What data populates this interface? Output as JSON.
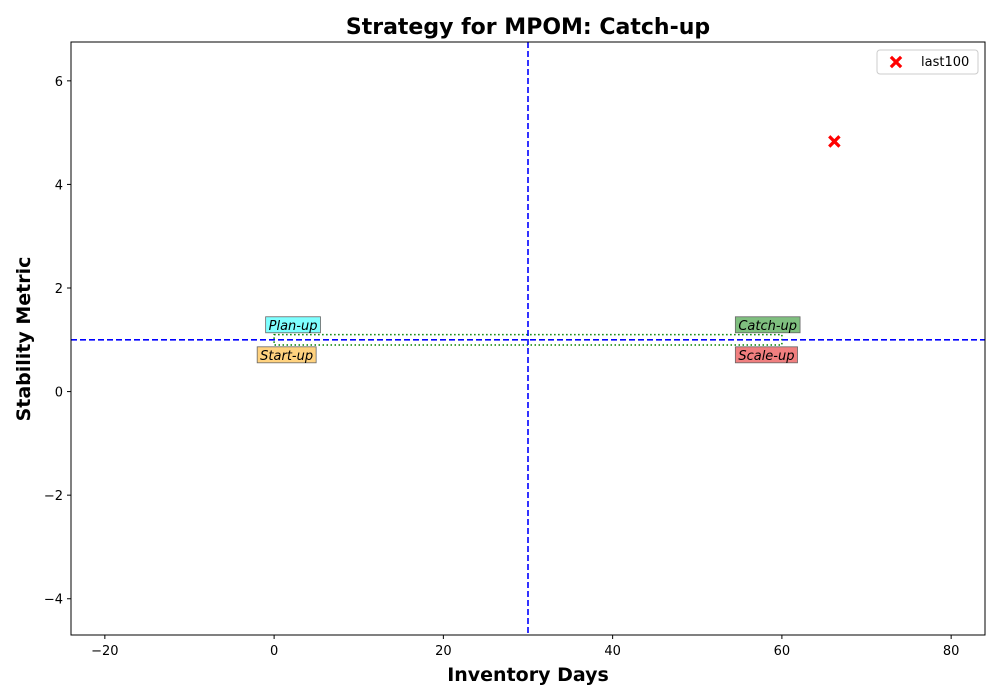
{
  "chart_data": {
    "type": "scatter",
    "title": "Strategy for MPOM: Catch-up",
    "xlabel": "Inventory Days",
    "ylabel": "Stability Metric",
    "xlim": [
      -24,
      84
    ],
    "ylim": [
      -4.7,
      6.75
    ],
    "xticks": [
      -20,
      0,
      20,
      40,
      60,
      80
    ],
    "yticks": [
      -4,
      -2,
      0,
      2,
      4,
      6
    ],
    "xtick_labels": [
      "−20",
      "0",
      "20",
      "40",
      "60",
      "80"
    ],
    "ytick_labels": [
      "−4",
      "−2",
      "0",
      "2",
      "4",
      "6"
    ],
    "grid": false,
    "reference_lines": {
      "x": 30,
      "y": 1,
      "color": "#0000ff",
      "style": "dashed"
    },
    "band": {
      "x_min": 0,
      "x_max": 60,
      "y_min": 0.9,
      "y_max": 1.1,
      "color": "#008000",
      "style": "dotted"
    },
    "series": [
      {
        "name": "last100",
        "marker": "X",
        "color": "#ff0000",
        "points": [
          {
            "x": 66.2,
            "y": 4.83
          }
        ]
      }
    ],
    "quadrant_labels": [
      {
        "text": "Plan-up",
        "x": -1,
        "y": 1.29,
        "bg": "#7fffff"
      },
      {
        "text": "Start-up",
        "x": -2,
        "y": 0.71,
        "bg": "#ffd27f"
      },
      {
        "text": "Catch-up",
        "x": 54.5,
        "y": 1.29,
        "bg": "#7fbf7f"
      },
      {
        "text": "Scale-up",
        "x": 54.5,
        "y": 0.71,
        "bg": "#f07f7f"
      }
    ],
    "legend": {
      "position": "top-right",
      "entries": [
        "last100"
      ]
    }
  }
}
